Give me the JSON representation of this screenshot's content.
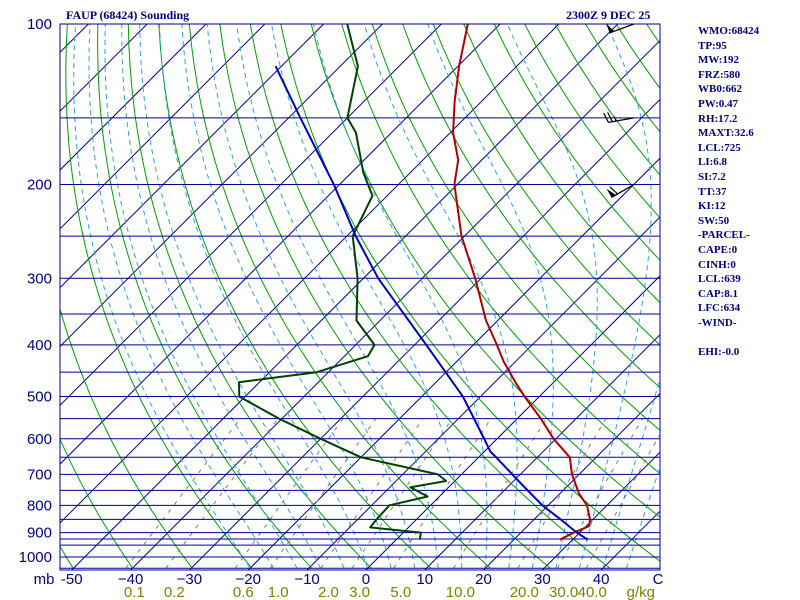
{
  "header": {
    "title": "FAUP (68424) Sounding",
    "datetime": "2300Z  9 DEC 25"
  },
  "stats": [
    "WMO:68424",
    "TP:95",
    "MW:192",
    "FRZ:580",
    "WB0:662",
    "PW:0.47",
    "RH:17.2",
    "MAXT:32.6",
    "LCL:725",
    "LI:6.8",
    "SI:7.2",
    "TT:37",
    "KI:12",
    "SW:50",
    "-PARCEL-",
    "CAPE:0",
    "CINH:0",
    "LCL:639",
    "CAP:8.1",
    "LFC:634",
    "-WIND-",
    "",
    "EHI:-0.0"
  ],
  "colors": {
    "isobar": "#000090",
    "frame": "#000090",
    "isotherm": "#000090",
    "dry_adiabat": "#00a000",
    "moist_adiabat": "#30a0e0",
    "mixing_ratio": "#808060",
    "temperature": "#b00000",
    "dewpoint": "#004000",
    "parcel": "#0000c0",
    "axis_text": "#000080",
    "mix_text": "#808000"
  },
  "chart_data": {
    "type": "line",
    "title": "FAUP (68424) Sounding",
    "pressure_unit_label": "mb",
    "mixing_ratio_unit_label": "g/kg",
    "pressure_levels": [
      100,
      150,
      200,
      250,
      300,
      350,
      400,
      450,
      500,
      550,
      600,
      650,
      700,
      750,
      800,
      850,
      900,
      925,
      950,
      1000,
      1050
    ],
    "pressure_tick_labels": [
      "100",
      "200",
      "300",
      "400",
      "500",
      "600",
      "700",
      "800",
      "900",
      "1000"
    ],
    "temperature_ticks": [
      -50,
      -40,
      -30,
      -20,
      -10,
      0,
      10,
      20,
      30,
      40
    ],
    "temperature_tick_labels": [
      "-50",
      "−40",
      "−30",
      "−20",
      "−10",
      "0",
      "10",
      "20",
      "30",
      "40"
    ],
    "temperature_unit_label": "C",
    "mixing_ratio_ticks": [
      0.1,
      0.2,
      0.6,
      1.0,
      2.0,
      3.0,
      5.0,
      10.0,
      20.0,
      30.0,
      40.0
    ],
    "mixing_ratio_tick_labels": [
      "0.1",
      "0.2",
      "0.6",
      "1.0",
      "2.0",
      "3.0",
      "5.0",
      "10.0",
      "20.0",
      "30.0",
      "40.0"
    ],
    "xlim_bottom_c": [
      -52,
      50
    ],
    "ylim_mb": [
      100,
      1050
    ],
    "series": [
      {
        "name": "Temperature",
        "points": [
          [
            928,
            27.8
          ],
          [
            900,
            29.0
          ],
          [
            875,
            30.5
          ],
          [
            850,
            29.5
          ],
          [
            800,
            26.6
          ],
          [
            760,
            23.2
          ],
          [
            700,
            18.8
          ],
          [
            650,
            15.5
          ],
          [
            600,
            9.6
          ],
          [
            550,
            4.0
          ],
          [
            500,
            -2.5
          ],
          [
            470,
            -6.5
          ],
          [
            430,
            -12.0
          ],
          [
            400,
            -16.0
          ],
          [
            360,
            -22.0
          ],
          [
            300,
            -31.0
          ],
          [
            250,
            -40.5
          ],
          [
            200,
            -50.5
          ],
          [
            180,
            -54.0
          ],
          [
            160,
            -59.5
          ],
          [
            140,
            -64.5
          ],
          [
            120,
            -69.8
          ],
          [
            100,
            -75.5
          ]
        ]
      },
      {
        "name": "Dewpoint",
        "points": [
          [
            928,
            4.0
          ],
          [
            900,
            3.0
          ],
          [
            880,
            -6.5
          ],
          [
            850,
            -6.8
          ],
          [
            800,
            -7.0
          ],
          [
            770,
            -2.0
          ],
          [
            740,
            -6.5
          ],
          [
            720,
            -1.5
          ],
          [
            700,
            -4.0
          ],
          [
            650,
            -20.0
          ],
          [
            600,
            -30.0
          ],
          [
            550,
            -40.5
          ],
          [
            500,
            -51.0
          ],
          [
            470,
            -53.5
          ],
          [
            450,
            -42.0
          ],
          [
            420,
            -36.0
          ],
          [
            400,
            -36.8
          ],
          [
            360,
            -44.0
          ],
          [
            300,
            -51.0
          ],
          [
            250,
            -59.0
          ],
          [
            210,
            -62.5
          ],
          [
            190,
            -68.0
          ],
          [
            160,
            -76.0
          ],
          [
            150,
            -80.0
          ],
          [
            120,
            -87.0
          ],
          [
            100,
            -96.0
          ]
        ]
      },
      {
        "name": "Parcel",
        "points": [
          [
            928,
            32.6
          ],
          [
            900,
            29.5
          ],
          [
            850,
            24.5
          ],
          [
            800,
            19.0
          ],
          [
            720,
            10.8
          ],
          [
            650,
            3.0
          ],
          [
            634,
            1.0
          ],
          [
            600,
            -2.2
          ],
          [
            500,
            -13.0
          ],
          [
            400,
            -28.0
          ],
          [
            300,
            -47.5
          ],
          [
            250,
            -58.5
          ],
          [
            200,
            -71.0
          ],
          [
            150,
            -88.0
          ],
          [
            120,
            -101.0
          ]
        ]
      }
    ],
    "wind_barbs": [
      {
        "p": 100,
        "dir": 250,
        "spd": 50
      },
      {
        "p": 150,
        "dir": 260,
        "spd": 25
      },
      {
        "p": 200,
        "dir": 240,
        "spd": 60
      }
    ]
  }
}
